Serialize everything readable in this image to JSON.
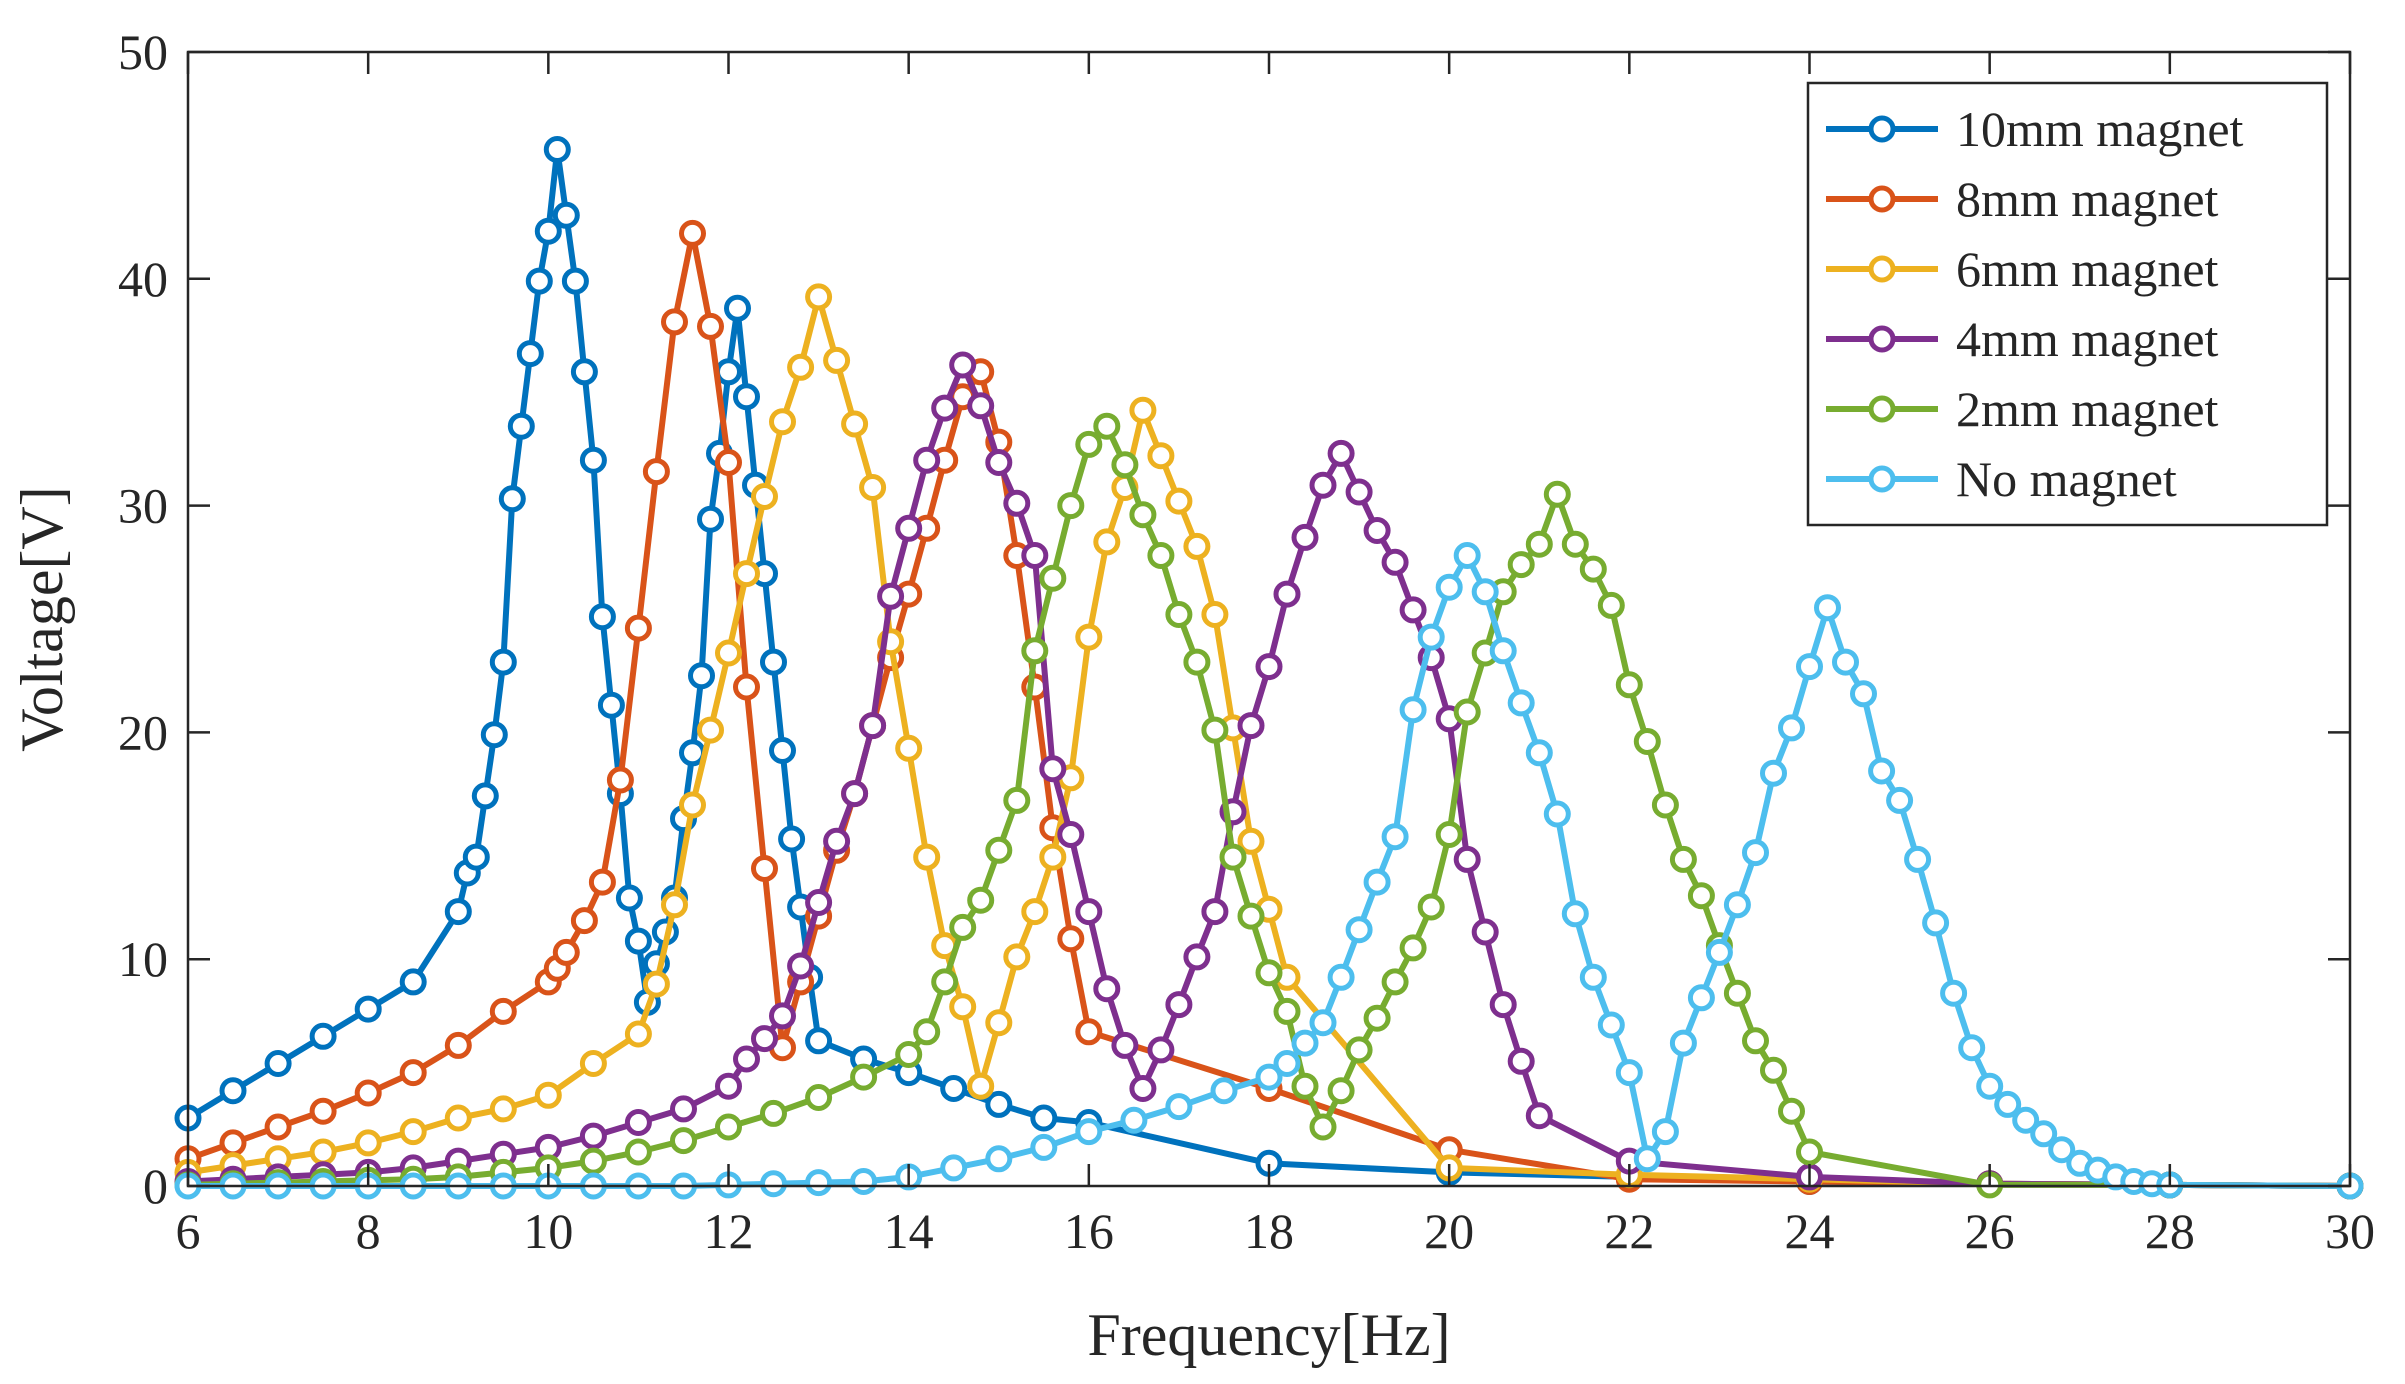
{
  "chart_data": {
    "type": "line",
    "xlabel": "Frequency[Hz]",
    "ylabel": "Voltage[V]",
    "xlim": [
      6,
      30
    ],
    "ylim": [
      0,
      50
    ],
    "xticks": [
      "6",
      "8",
      "10",
      "12",
      "14",
      "16",
      "18",
      "20",
      "22",
      "24",
      "26",
      "28",
      "30"
    ],
    "yticks": [
      "0",
      "10",
      "20",
      "30",
      "40",
      "50"
    ],
    "legend_position": "top-right",
    "series": [
      {
        "name": "10mm magnet",
        "color": "#0072BD",
        "x": [
          6,
          6.5,
          7,
          7.5,
          8,
          8.5,
          9,
          9.1,
          9.2,
          9.3,
          9.4,
          9.5,
          9.6,
          9.7,
          9.8,
          9.9,
          10,
          10.1,
          10.2,
          10.3,
          10.4,
          10.5,
          10.6,
          10.7,
          10.8,
          10.9,
          11,
          11.1,
          11.2,
          11.3,
          11.4,
          11.5,
          11.6,
          11.7,
          11.8,
          11.9,
          12,
          12.1,
          12.2,
          12.3,
          12.4,
          12.5,
          12.6,
          12.7,
          12.8,
          12.9,
          13,
          13.5,
          14,
          14.5,
          15,
          15.5,
          16,
          18,
          20,
          22,
          24,
          26,
          28,
          30
        ],
        "values": [
          3.0,
          4.2,
          5.4,
          6.6,
          7.8,
          9.0,
          12.1,
          13.8,
          14.5,
          17.2,
          19.9,
          23.1,
          30.3,
          33.5,
          36.7,
          39.9,
          42.1,
          45.7,
          42.8,
          39.9,
          35.9,
          32.0,
          25.1,
          21.2,
          17.3,
          12.7,
          10.8,
          8.1,
          9.8,
          11.2,
          12.7,
          16.2,
          19.1,
          22.5,
          29.4,
          32.3,
          35.9,
          38.7,
          34.8,
          30.9,
          27.0,
          23.1,
          19.2,
          15.3,
          12.3,
          9.2,
          6.4,
          5.6,
          5.0,
          4.3,
          3.6,
          3.0,
          2.8,
          1.0,
          0.6,
          0.4,
          0.2,
          0.1,
          0.05,
          0.0
        ]
      },
      {
        "name": "8mm magnet",
        "color": "#D95319",
        "x": [
          6,
          6.5,
          7,
          7.5,
          8,
          8.5,
          9,
          9.5,
          10,
          10.1,
          10.2,
          10.4,
          10.6,
          10.8,
          11,
          11.2,
          11.4,
          11.6,
          11.8,
          12,
          12.2,
          12.4,
          12.6,
          12.8,
          13,
          13.2,
          13.4,
          13.6,
          13.8,
          14,
          14.2,
          14.4,
          14.6,
          14.8,
          15,
          15.2,
          15.4,
          15.6,
          15.8,
          16,
          18,
          20,
          22,
          24,
          26,
          28,
          30
        ],
        "values": [
          1.2,
          1.9,
          2.6,
          3.3,
          4.1,
          5.0,
          6.2,
          7.7,
          9.0,
          9.6,
          10.3,
          11.7,
          13.4,
          17.9,
          24.6,
          31.5,
          38.1,
          42.0,
          37.9,
          31.9,
          22.0,
          14.0,
          6.1,
          9.0,
          11.9,
          14.8,
          17.3,
          20.3,
          23.3,
          26.1,
          29.0,
          32.0,
          34.8,
          35.9,
          32.8,
          27.8,
          22.0,
          15.8,
          10.9,
          6.8,
          4.3,
          1.6,
          0.3,
          0.2,
          0.1,
          0.05,
          0.0
        ]
      },
      {
        "name": "6mm magnet",
        "color": "#EDB120",
        "x": [
          6,
          6.5,
          7,
          7.5,
          8,
          8.5,
          9,
          9.5,
          10,
          10.5,
          11,
          11.2,
          11.4,
          11.6,
          11.8,
          12,
          12.2,
          12.4,
          12.6,
          12.8,
          13,
          13.2,
          13.4,
          13.6,
          13.8,
          14,
          14.2,
          14.4,
          14.6,
          14.8,
          15,
          15.2,
          15.4,
          15.6,
          15.8,
          16,
          16.2,
          16.4,
          16.6,
          16.8,
          17,
          17.2,
          17.4,
          17.6,
          17.8,
          18,
          18.2,
          20,
          22,
          24,
          26,
          28,
          30
        ],
        "values": [
          0.6,
          0.9,
          1.2,
          1.5,
          1.9,
          2.4,
          3.0,
          3.4,
          4.0,
          5.4,
          6.7,
          8.9,
          12.4,
          16.8,
          20.1,
          23.5,
          27.0,
          30.4,
          33.7,
          36.1,
          39.2,
          36.4,
          33.6,
          30.8,
          24.0,
          19.3,
          14.5,
          10.6,
          7.9,
          4.4,
          7.2,
          10.1,
          12.1,
          14.5,
          18.0,
          24.2,
          28.4,
          30.8,
          34.2,
          32.2,
          30.2,
          28.2,
          25.2,
          20.2,
          15.2,
          12.2,
          9.2,
          0.8,
          0.5,
          0.3,
          0.1,
          0.05,
          0.0
        ]
      },
      {
        "name": "4mm magnet",
        "color": "#7E2F8E",
        "x": [
          6,
          6.5,
          7,
          7.5,
          8,
          8.5,
          9,
          9.5,
          10,
          10.5,
          11,
          11.5,
          12,
          12.2,
          12.4,
          12.6,
          12.8,
          13,
          13.2,
          13.4,
          13.6,
          13.8,
          14,
          14.2,
          14.4,
          14.6,
          14.8,
          15,
          15.2,
          15.4,
          15.6,
          15.8,
          16,
          16.2,
          16.4,
          16.6,
          16.8,
          17,
          17.2,
          17.4,
          17.6,
          17.8,
          18,
          18.2,
          18.4,
          18.6,
          18.8,
          19,
          19.2,
          19.4,
          19.6,
          19.8,
          20,
          20.2,
          20.4,
          20.6,
          20.8,
          21,
          22,
          24,
          26,
          28,
          30
        ],
        "values": [
          0.2,
          0.3,
          0.4,
          0.5,
          0.6,
          0.8,
          1.1,
          1.4,
          1.7,
          2.2,
          2.8,
          3.4,
          4.4,
          5.6,
          6.5,
          7.5,
          9.7,
          12.5,
          15.2,
          17.3,
          20.3,
          26.0,
          29.0,
          32.0,
          34.3,
          36.2,
          34.4,
          31.9,
          30.1,
          27.8,
          18.4,
          15.5,
          12.1,
          8.7,
          6.2,
          4.3,
          6.0,
          8.0,
          10.1,
          12.1,
          16.5,
          20.3,
          22.9,
          26.1,
          28.6,
          30.9,
          32.3,
          30.6,
          28.9,
          27.5,
          25.4,
          23.3,
          20.6,
          14.4,
          11.2,
          8.0,
          5.5,
          3.1,
          1.1,
          0.4,
          0.1,
          0.05,
          0.0
        ]
      },
      {
        "name": "2mm magnet",
        "color": "#77AC30",
        "x": [
          6,
          6.5,
          7,
          7.5,
          8,
          8.5,
          9,
          9.5,
          10,
          10.5,
          11,
          11.5,
          12,
          12.5,
          13,
          13.5,
          14,
          14.2,
          14.4,
          14.6,
          14.8,
          15,
          15.2,
          15.4,
          15.6,
          15.8,
          16,
          16.2,
          16.4,
          16.6,
          16.8,
          17,
          17.2,
          17.4,
          17.6,
          17.8,
          18,
          18.2,
          18.4,
          18.6,
          18.8,
          19,
          19.2,
          19.4,
          19.6,
          19.8,
          20,
          20.2,
          20.4,
          20.6,
          20.8,
          21,
          21.2,
          21.4,
          21.6,
          21.8,
          22,
          22.2,
          22.4,
          22.6,
          22.8,
          23,
          23.2,
          23.4,
          23.6,
          23.8,
          24,
          26,
          28,
          30
        ],
        "values": [
          0.05,
          0.1,
          0.15,
          0.2,
          0.25,
          0.3,
          0.4,
          0.6,
          0.8,
          1.1,
          1.5,
          2.0,
          2.6,
          3.2,
          3.9,
          4.8,
          5.8,
          6.8,
          9.0,
          11.4,
          12.6,
          14.8,
          17.0,
          23.6,
          26.8,
          30.0,
          32.7,
          33.5,
          31.8,
          29.6,
          27.8,
          25.2,
          23.1,
          20.1,
          14.5,
          11.9,
          9.4,
          7.7,
          4.4,
          2.6,
          4.2,
          6.0,
          7.4,
          9.0,
          10.5,
          12.3,
          15.5,
          20.9,
          23.5,
          26.2,
          27.4,
          28.3,
          30.5,
          28.3,
          27.2,
          25.6,
          22.1,
          19.6,
          16.8,
          14.4,
          12.8,
          10.6,
          8.5,
          6.4,
          5.1,
          3.3,
          1.5,
          0.05,
          0.05,
          0.0
        ]
      },
      {
        "name": "No magnet",
        "color": "#4DBEEE",
        "x": [
          6,
          6.5,
          7,
          7.5,
          8,
          8.5,
          9,
          9.5,
          10,
          10.5,
          11,
          11.5,
          12,
          12.5,
          13,
          13.5,
          14,
          14.5,
          15,
          15.5,
          16,
          16.5,
          17,
          17.5,
          18,
          18.2,
          18.4,
          18.6,
          18.8,
          19,
          19.2,
          19.4,
          19.6,
          19.8,
          20,
          20.2,
          20.4,
          20.6,
          20.8,
          21,
          21.2,
          21.4,
          21.6,
          21.8,
          22,
          22.2,
          22.4,
          22.6,
          22.8,
          23,
          23.2,
          23.4,
          23.6,
          23.8,
          24,
          24.2,
          24.4,
          24.6,
          24.8,
          25,
          25.2,
          25.4,
          25.6,
          25.8,
          26,
          26.2,
          26.4,
          26.6,
          26.8,
          27,
          27.2,
          27.4,
          27.6,
          27.8,
          28,
          30
        ],
        "values": [
          0.0,
          0.0,
          0.0,
          0.0,
          0.0,
          0.0,
          0.0,
          0.0,
          0.0,
          0.0,
          0.0,
          0.0,
          0.05,
          0.1,
          0.15,
          0.2,
          0.4,
          0.8,
          1.2,
          1.7,
          2.4,
          2.9,
          3.5,
          4.2,
          4.8,
          5.4,
          6.3,
          7.2,
          9.2,
          11.3,
          13.4,
          15.4,
          21.0,
          24.2,
          26.4,
          27.8,
          26.2,
          23.6,
          21.3,
          19.1,
          16.4,
          12.0,
          9.2,
          7.1,
          5.0,
          1.2,
          2.4,
          6.3,
          8.3,
          10.3,
          12.4,
          14.7,
          18.2,
          20.2,
          22.9,
          25.5,
          23.1,
          21.7,
          18.3,
          17.0,
          14.4,
          11.6,
          8.5,
          6.1,
          4.4,
          3.6,
          2.9,
          2.3,
          1.6,
          1.0,
          0.7,
          0.4,
          0.2,
          0.1,
          0.05,
          0.0
        ]
      }
    ]
  }
}
